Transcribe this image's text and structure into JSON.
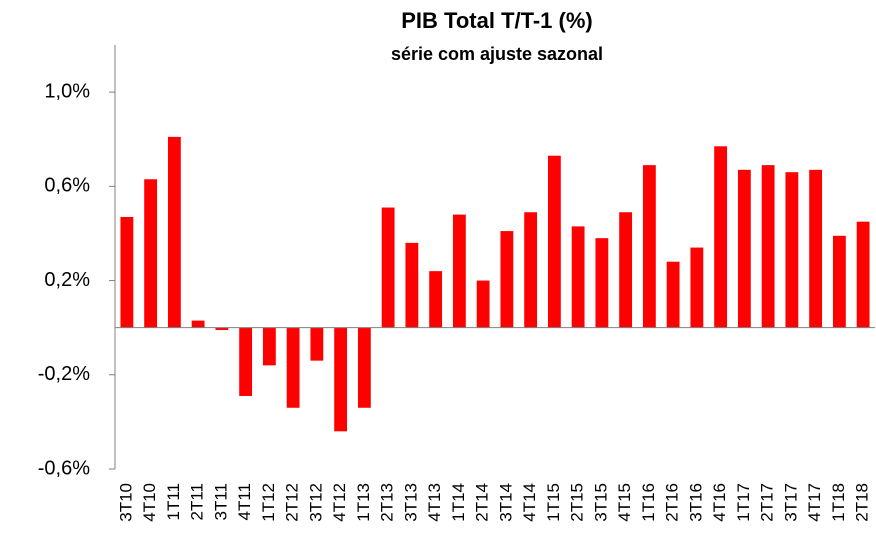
{
  "chart_data": {
    "type": "bar",
    "title": "PIB Total T/T-1 (%)",
    "subtitle": "série com ajuste sazonal",
    "categories": [
      "3T10",
      "4T10",
      "1T11",
      "2T11",
      "3T11",
      "4T11",
      "1T12",
      "2T12",
      "3T12",
      "4T12",
      "1T13",
      "2T13",
      "3T13",
      "4T13",
      "1T14",
      "2T14",
      "3T14",
      "4T14",
      "1T15",
      "2T15",
      "3T15",
      "4T15",
      "1T16",
      "2T16",
      "3T16",
      "4T16",
      "1T17",
      "2T17",
      "3T17",
      "4T17",
      "1T18",
      "2T18"
    ],
    "values": [
      0.47,
      0.63,
      0.81,
      0.03,
      -0.01,
      -0.29,
      -0.16,
      -0.34,
      -0.14,
      -0.44,
      -0.34,
      0.51,
      0.36,
      0.24,
      0.48,
      0.2,
      0.41,
      0.49,
      0.73,
      0.43,
      0.38,
      0.49,
      0.69,
      0.28,
      0.34,
      0.77,
      0.67,
      0.69,
      0.66,
      0.67,
      0.39,
      0.45
    ],
    "color": "#ff0000",
    "ylim": [
      -0.6,
      1.2
    ],
    "yticks": [
      {
        "value": -0.6,
        "label": "-0,6%"
      },
      {
        "value": -0.2,
        "label": "-0,2%"
      },
      {
        "value": 0.2,
        "label": "0,2%"
      },
      {
        "value": 0.6,
        "label": "0,6%"
      },
      {
        "value": 1.0,
        "label": "1,0%"
      }
    ]
  }
}
